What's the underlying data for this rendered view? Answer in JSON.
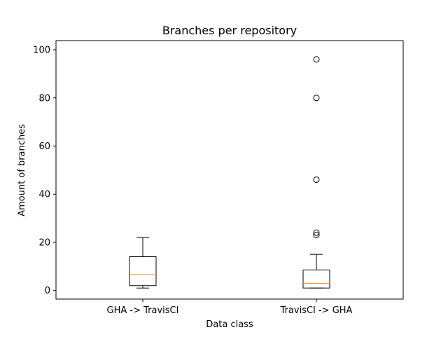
{
  "chart_data": {
    "type": "box",
    "title": "Branches per repository",
    "xlabel": "Data class",
    "ylabel": "Amount of branches",
    "categories": [
      "GHA -> TravisCI",
      "TravisCI -> GHA"
    ],
    "y_ticks": [
      "0",
      "20",
      "40",
      "60",
      "80",
      "100"
    ],
    "y_tick_values": [
      0,
      20,
      40,
      60,
      80,
      100
    ],
    "ylim": [
      -3.6,
      103.8
    ],
    "grid": false,
    "boxes": [
      {
        "category": "GHA -> TravisCI",
        "whisker_low": 1,
        "q1": 2,
        "median": 6.5,
        "q3": 14,
        "whisker_high": 22,
        "outliers": []
      },
      {
        "category": "TravisCI -> GHA",
        "whisker_low": 1,
        "q1": 1,
        "median": 3,
        "q3": 8.5,
        "whisker_high": 15,
        "outliers": [
          23,
          24,
          46,
          80,
          96
        ]
      }
    ],
    "colors": {
      "box": "#000000",
      "median": "#ff7f0e",
      "outlier": "#000000"
    }
  }
}
